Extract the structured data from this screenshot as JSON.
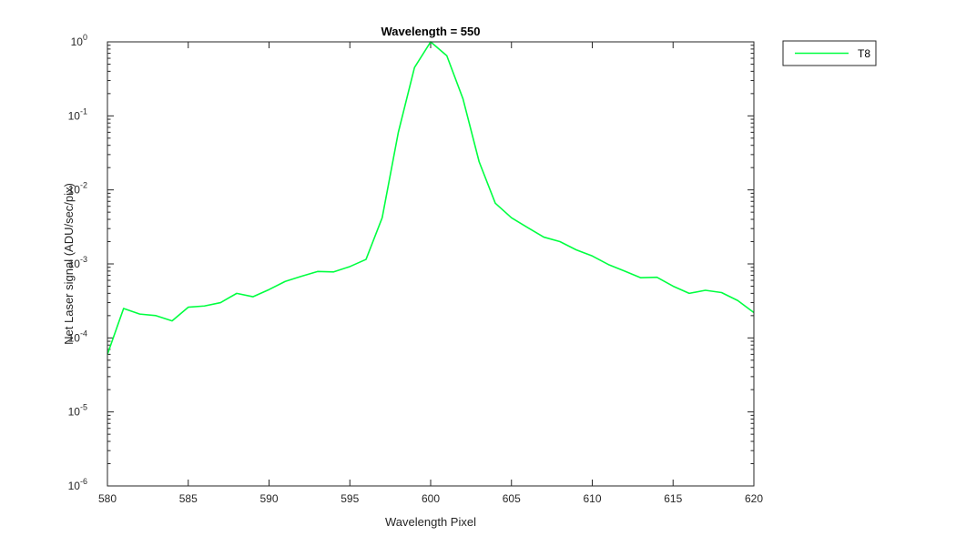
{
  "chart_data": {
    "type": "line",
    "title": "Wavelength = 550",
    "xlabel": "Wavelength Pixel",
    "ylabel": "Net Laser signal  (ADU/sec/pix)",
    "xlim": [
      580,
      620
    ],
    "ylim": [
      1e-06,
      1
    ],
    "yscale": "log",
    "grid": false,
    "legend_position": "outside-top-right",
    "x_ticks": [
      {
        "value": 580,
        "label": "580"
      },
      {
        "value": 585,
        "label": "585"
      },
      {
        "value": 590,
        "label": "590"
      },
      {
        "value": 595,
        "label": "595"
      },
      {
        "value": 600,
        "label": "600"
      },
      {
        "value": 605,
        "label": "605"
      },
      {
        "value": 610,
        "label": "610"
      },
      {
        "value": 615,
        "label": "615"
      },
      {
        "value": 620,
        "label": "620"
      }
    ],
    "y_ticks": [
      {
        "value": 1,
        "base": "10",
        "exp": "0"
      },
      {
        "value": 0.1,
        "base": "10",
        "exp": "-1"
      },
      {
        "value": 0.01,
        "base": "10",
        "exp": "-2"
      },
      {
        "value": 0.001,
        "base": "10",
        "exp": "-3"
      },
      {
        "value": 0.0001,
        "base": "10",
        "exp": "-4"
      },
      {
        "value": 1e-05,
        "base": "10",
        "exp": "-5"
      },
      {
        "value": 1e-06,
        "base": "10",
        "exp": "-6"
      }
    ],
    "series": [
      {
        "name": "T8",
        "color": "#00ff40",
        "x": [
          580,
          581,
          582,
          583,
          584,
          585,
          586,
          587,
          588,
          589,
          590,
          591,
          592,
          593,
          594,
          595,
          596,
          597,
          598,
          599,
          600,
          601,
          602,
          603,
          604,
          605,
          606,
          607,
          608,
          609,
          610,
          611,
          612,
          613,
          614,
          615,
          616,
          617,
          618,
          619,
          620
        ],
        "y": [
          6e-05,
          0.00025,
          0.00021,
          0.0002,
          0.00017,
          0.00026,
          0.00027,
          0.0003,
          0.0004,
          0.00036,
          0.00045,
          0.00058,
          0.00068,
          0.00079,
          0.00078,
          0.00092,
          0.00115,
          0.0042,
          0.06,
          0.45,
          1.0,
          0.65,
          0.17,
          0.024,
          0.0066,
          0.0042,
          0.0031,
          0.0023,
          0.002,
          0.00155,
          0.00128,
          0.00098,
          0.0008,
          0.00065,
          0.00066,
          0.0005,
          0.0004,
          0.00044,
          0.00041,
          0.00032,
          0.00022
        ]
      }
    ]
  }
}
